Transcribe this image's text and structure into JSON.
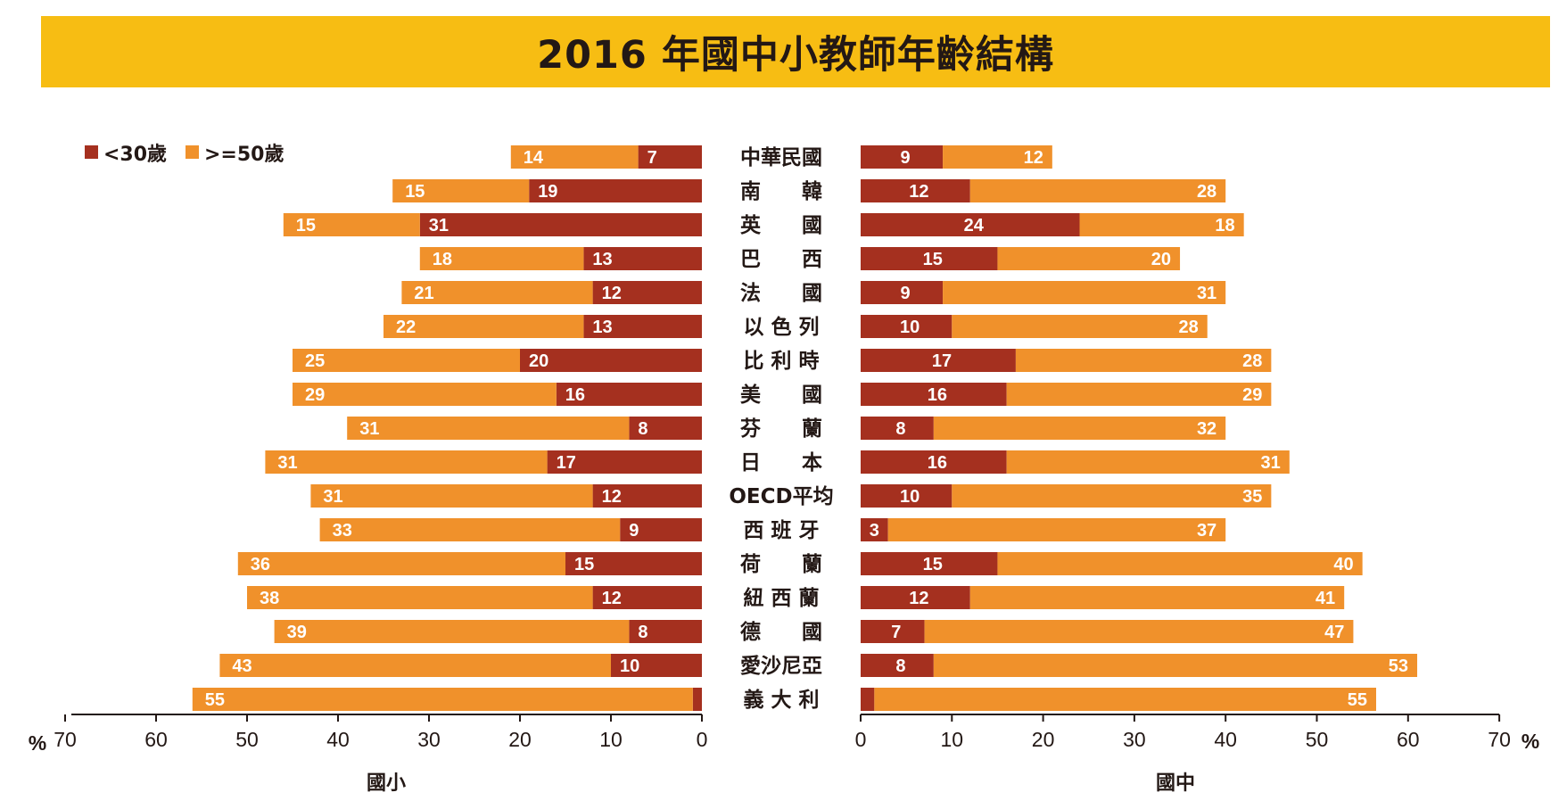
{
  "chart_data": {
    "type": "bar",
    "title": "2016 年國中小教師年齡結構",
    "unit_label": "%",
    "legend": [
      "<30歲",
      ">=50歲"
    ],
    "colors": {
      "under30": "#A5301F",
      "over50": "#F0912B"
    },
    "categories": [
      "中華民國",
      "南　　韓",
      "英　　國",
      "巴　　西",
      "法　　國",
      "以 色 列",
      "比 利 時",
      "美　　國",
      "芬　　蘭",
      "日　　本",
      "OECD平均",
      "西 班 牙",
      "荷　　蘭",
      "紐 西 蘭",
      "德　　國",
      "愛沙尼亞",
      "義 大 利"
    ],
    "panels": [
      {
        "name": "國小",
        "xlim": [
          70,
          0
        ],
        "ticks": [
          70,
          60,
          50,
          40,
          30,
          20,
          10,
          0
        ],
        "series": [
          {
            "name": "<30歲",
            "values": [
              7,
              19,
              31,
              13,
              12,
              13,
              20,
              16,
              8,
              17,
              12,
              9,
              15,
              12,
              8,
              10,
              1
            ],
            "labels": [
              "7",
              "19",
              "31",
              "13",
              "12",
              "13",
              "20",
              "16",
              "8",
              "17",
              "12",
              "9",
              "15",
              "12",
              "8",
              "10",
              ""
            ]
          },
          {
            "name": ">=50歲",
            "values": [
              14,
              15,
              15,
              18,
              21,
              22,
              25,
              29,
              31,
              31,
              31,
              33,
              36,
              38,
              39,
              43,
              55
            ],
            "labels": [
              "14",
              "15",
              "15",
              "18",
              "21",
              "22",
              "25",
              "29",
              "31",
              "31",
              "31",
              "33",
              "36",
              "38",
              "39",
              "43",
              "55"
            ]
          }
        ]
      },
      {
        "name": "國中",
        "xlim": [
          0,
          70
        ],
        "ticks": [
          0,
          10,
          20,
          30,
          40,
          50,
          60,
          70
        ],
        "series": [
          {
            "name": "<30歲",
            "values": [
              9,
              12,
              24,
              15,
              9,
              10,
              17,
              16,
              8,
              16,
              10,
              3,
              15,
              12,
              7,
              8,
              1.5
            ],
            "labels": [
              "9",
              "12",
              "24",
              "15",
              "9",
              "10",
              "17",
              "16",
              "8",
              "16",
              "10",
              "3",
              "15",
              "12",
              "7",
              "8",
              ""
            ]
          },
          {
            "name": ">=50歲",
            "values": [
              12,
              28,
              18,
              20,
              31,
              28,
              28,
              29,
              32,
              31,
              35,
              37,
              40,
              41,
              47,
              53,
              55
            ],
            "labels": [
              "12",
              "28",
              "18",
              "20",
              "31",
              "28",
              "28",
              "29",
              "32",
              "31",
              "35",
              "37",
              "40",
              "41",
              "47",
              "53",
              "55"
            ]
          }
        ]
      }
    ]
  }
}
